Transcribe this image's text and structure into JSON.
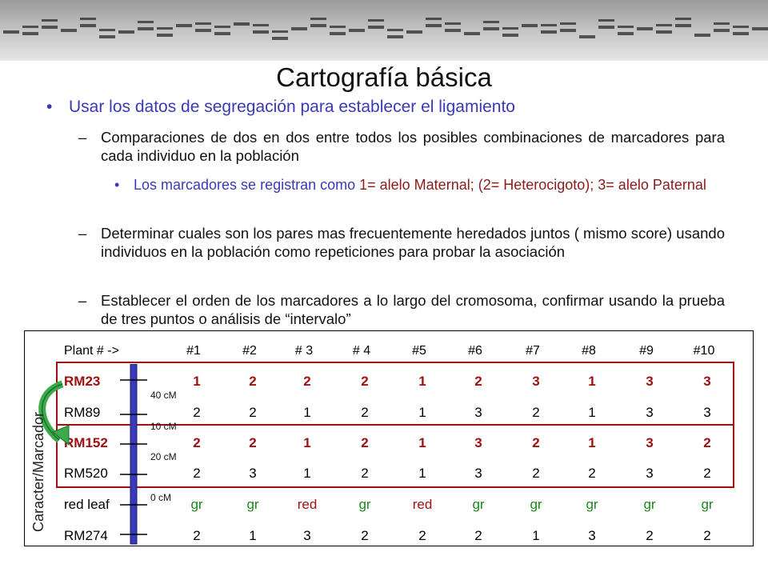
{
  "title": "Cartografía básica",
  "bullets": {
    "l1": "Usar los datos de segregación para establecer el ligamiento",
    "sub1": "Comparaciones de dos en dos entre todos los posibles combinaciones de marcadores para cada individuo en la población",
    "sub1a_part1": "Los marcadores se registran como ",
    "sub1a_part2": "1= alelo Maternal; (2= Heterocigoto); 3= alelo Paternal",
    "sub2": "Determinar cuales son los pares mas frecuentemente heredados juntos ( mismo score) usando individuos en la población como repeticiones para probar la asociación",
    "sub3": "Establecer el orden de los marcadores a lo largo del cromosoma, confirmar usando la prueba de tres puntos o análisis de “intervalo”"
  },
  "table": {
    "header_label": "Plant # ->",
    "plants": [
      "#1",
      "#2",
      "# 3",
      "# 4",
      "#5",
      "#6",
      "#7",
      "#8",
      "#9",
      "#10"
    ],
    "rows": [
      {
        "name": "RM23",
        "values": [
          "1",
          "2",
          "2",
          "2",
          "1",
          "2",
          "3",
          "1",
          "3",
          "3"
        ],
        "style": "red"
      },
      {
        "name": "RM89",
        "values": [
          "2",
          "2",
          "1",
          "2",
          "1",
          "3",
          "2",
          "1",
          "3",
          "3"
        ],
        "style": "normal"
      },
      {
        "name": "RM152",
        "values": [
          "2",
          "2",
          "1",
          "2",
          "1",
          "3",
          "2",
          "1",
          "3",
          "2"
        ],
        "style": "red"
      },
      {
        "name": "RM520",
        "values": [
          "2",
          "3",
          "1",
          "2",
          "1",
          "3",
          "2",
          "2",
          "3",
          "2"
        ],
        "style": "normal"
      },
      {
        "name": "red leaf",
        "values": [
          "gr",
          "gr",
          "red",
          "gr",
          "red",
          "gr",
          "gr",
          "gr",
          "gr",
          "gr"
        ],
        "style": "color"
      },
      {
        "name": "RM274",
        "values": [
          "2",
          "1",
          "3",
          "2",
          "2",
          "2",
          "1",
          "3",
          "2",
          "2"
        ],
        "style": "normal"
      }
    ],
    "distances": [
      "40 cM",
      "10 cM",
      "20 cM",
      "0 cM"
    ],
    "side_label": "Caracter/Marcador"
  },
  "colors": {
    "accent_blue": "#3a3ab8",
    "dark_red": "#a01010",
    "green": "#1a8a1a",
    "chromosome": "#3a3ab8"
  }
}
